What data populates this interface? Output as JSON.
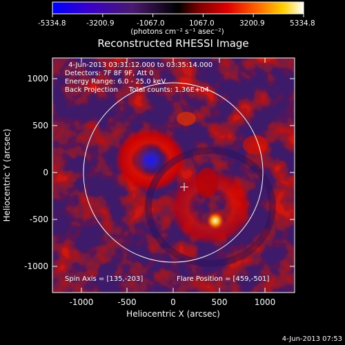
{
  "colorbar": {
    "tick_labels": [
      "-5334.8",
      "-3200.9",
      "-1067.0",
      "1067.0",
      "3200.9",
      "5334.8"
    ],
    "unit_label": "(photons cm⁻² s⁻¹ asec⁻²)",
    "colors": [
      "#0000ff",
      "#3a00c8",
      "#4a1a6e",
      "#000000",
      "#7a0000",
      "#e00000",
      "#ff6a00",
      "#ffd000",
      "#ffffff"
    ]
  },
  "plot": {
    "title": "Reconstructed RHESSI Image",
    "info_lines": [
      "4-Jun-2013 03:31:12.000 to 03:35:14.000",
      "Detectors: 7F 8F 9F, Att 0",
      "Energy Range: 6.0 - 25.0 keV",
      "Back Projection     Total counts: 1.36E+04"
    ],
    "spin_axis": "Spin Axis = [135,-203]",
    "flare_position": "Flare Position = [459,-501]",
    "x_axis": {
      "label": "Heliocentric X (arcsec)",
      "ticks": [
        "-1000",
        "-500",
        "0",
        "500",
        "1000"
      ]
    },
    "y_axis": {
      "label": "Heliocentric Y (arcsec)",
      "ticks": [
        "1000",
        "500",
        "0",
        "-500",
        "-1000"
      ]
    }
  },
  "timestamp": "4-Jun-2013 07:53"
}
